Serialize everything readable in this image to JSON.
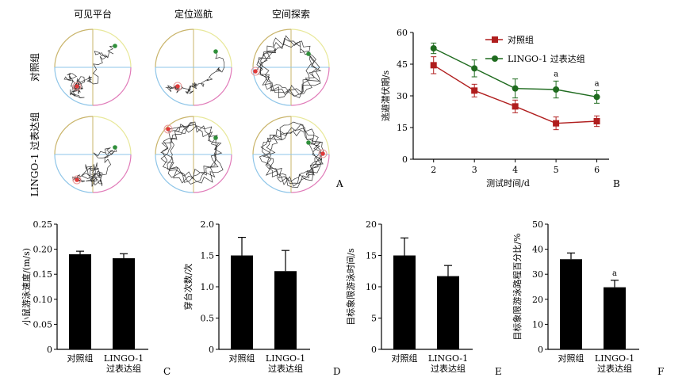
{
  "panel_a": {
    "letter": "A",
    "col_labels": [
      "可见平台",
      "定位巡航",
      "空间探索"
    ],
    "row_labels": [
      "对照组",
      "LINGO-1 过表达组"
    ],
    "quadrant_colors": [
      "#c9b46a",
      "#e8e89a",
      "#8ec5e8",
      "#e07ab8"
    ],
    "platform_color": "#e03a3a",
    "start_color": "#2f8f3a"
  },
  "chart_data": [
    {
      "id": "B",
      "type": "line",
      "letter": "B",
      "x": [
        2,
        3,
        4,
        5,
        6
      ],
      "xlabel": "测试时间/d",
      "ylabel": "逃避潜伏期/s",
      "ylim": [
        0,
        60
      ],
      "yticks": [
        0,
        15,
        30,
        45,
        60
      ],
      "legend": "top-right",
      "series": [
        {
          "name": "对照组",
          "color": "#b01e1e",
          "marker": "square",
          "values": [
            44.5,
            32.5,
            25.0,
            17.0,
            18.0
          ],
          "err": [
            4.0,
            3.0,
            3.0,
            3.0,
            2.5
          ]
        },
        {
          "name": "LINGO-1 过表达组",
          "color": "#1f6b1f",
          "marker": "circle",
          "values": [
            52.5,
            43.0,
            33.5,
            33.0,
            29.5
          ],
          "err": [
            2.5,
            4.0,
            4.5,
            4.0,
            3.0
          ]
        }
      ],
      "annotations": [
        {
          "x": 5,
          "text": "a"
        },
        {
          "x": 6,
          "text": "a"
        }
      ]
    },
    {
      "id": "C",
      "type": "bar",
      "letter": "C",
      "categories": [
        "对照组",
        "LINGO-1\n过表达组"
      ],
      "values": [
        0.19,
        0.182
      ],
      "err": [
        0.006,
        0.009
      ],
      "ylabel": "小鼠游泳速度/(m/s)",
      "ylim": [
        0,
        0.25
      ],
      "yticks": [
        "0",
        "0.05",
        "0.10",
        "0.15",
        "0.20",
        "0.25"
      ],
      "annotations": []
    },
    {
      "id": "D",
      "type": "bar",
      "letter": "D",
      "categories": [
        "对照组",
        "LINGO-1\n过表达组"
      ],
      "values": [
        1.5,
        1.25
      ],
      "err": [
        0.29,
        0.33
      ],
      "ylabel": "穿台次数/次",
      "ylim": [
        0,
        2.0
      ],
      "yticks": [
        "0",
        "0.5",
        "1.0",
        "1.5",
        "2.0"
      ],
      "annotations": []
    },
    {
      "id": "E",
      "type": "bar",
      "letter": "E",
      "categories": [
        "对照组",
        "LINGO-1\n过表达组"
      ],
      "values": [
        15.0,
        11.7
      ],
      "err": [
        2.8,
        1.7
      ],
      "ylabel": "目标象限游泳时间/s",
      "ylim": [
        0,
        20
      ],
      "yticks": [
        "0",
        "5",
        "10",
        "15",
        "20"
      ],
      "annotations": []
    },
    {
      "id": "F",
      "type": "bar",
      "letter": "F",
      "categories": [
        "对照组",
        "LINGO-1\n过表达组"
      ],
      "values": [
        36.0,
        24.8
      ],
      "err": [
        2.5,
        2.8
      ],
      "ylabel": "目标象限游泳路程百分比/%",
      "ylim": [
        0,
        50
      ],
      "yticks": [
        "0",
        "10",
        "20",
        "30",
        "40",
        "50"
      ],
      "annotations": [
        {
          "index": 1,
          "text": "a"
        }
      ]
    }
  ]
}
